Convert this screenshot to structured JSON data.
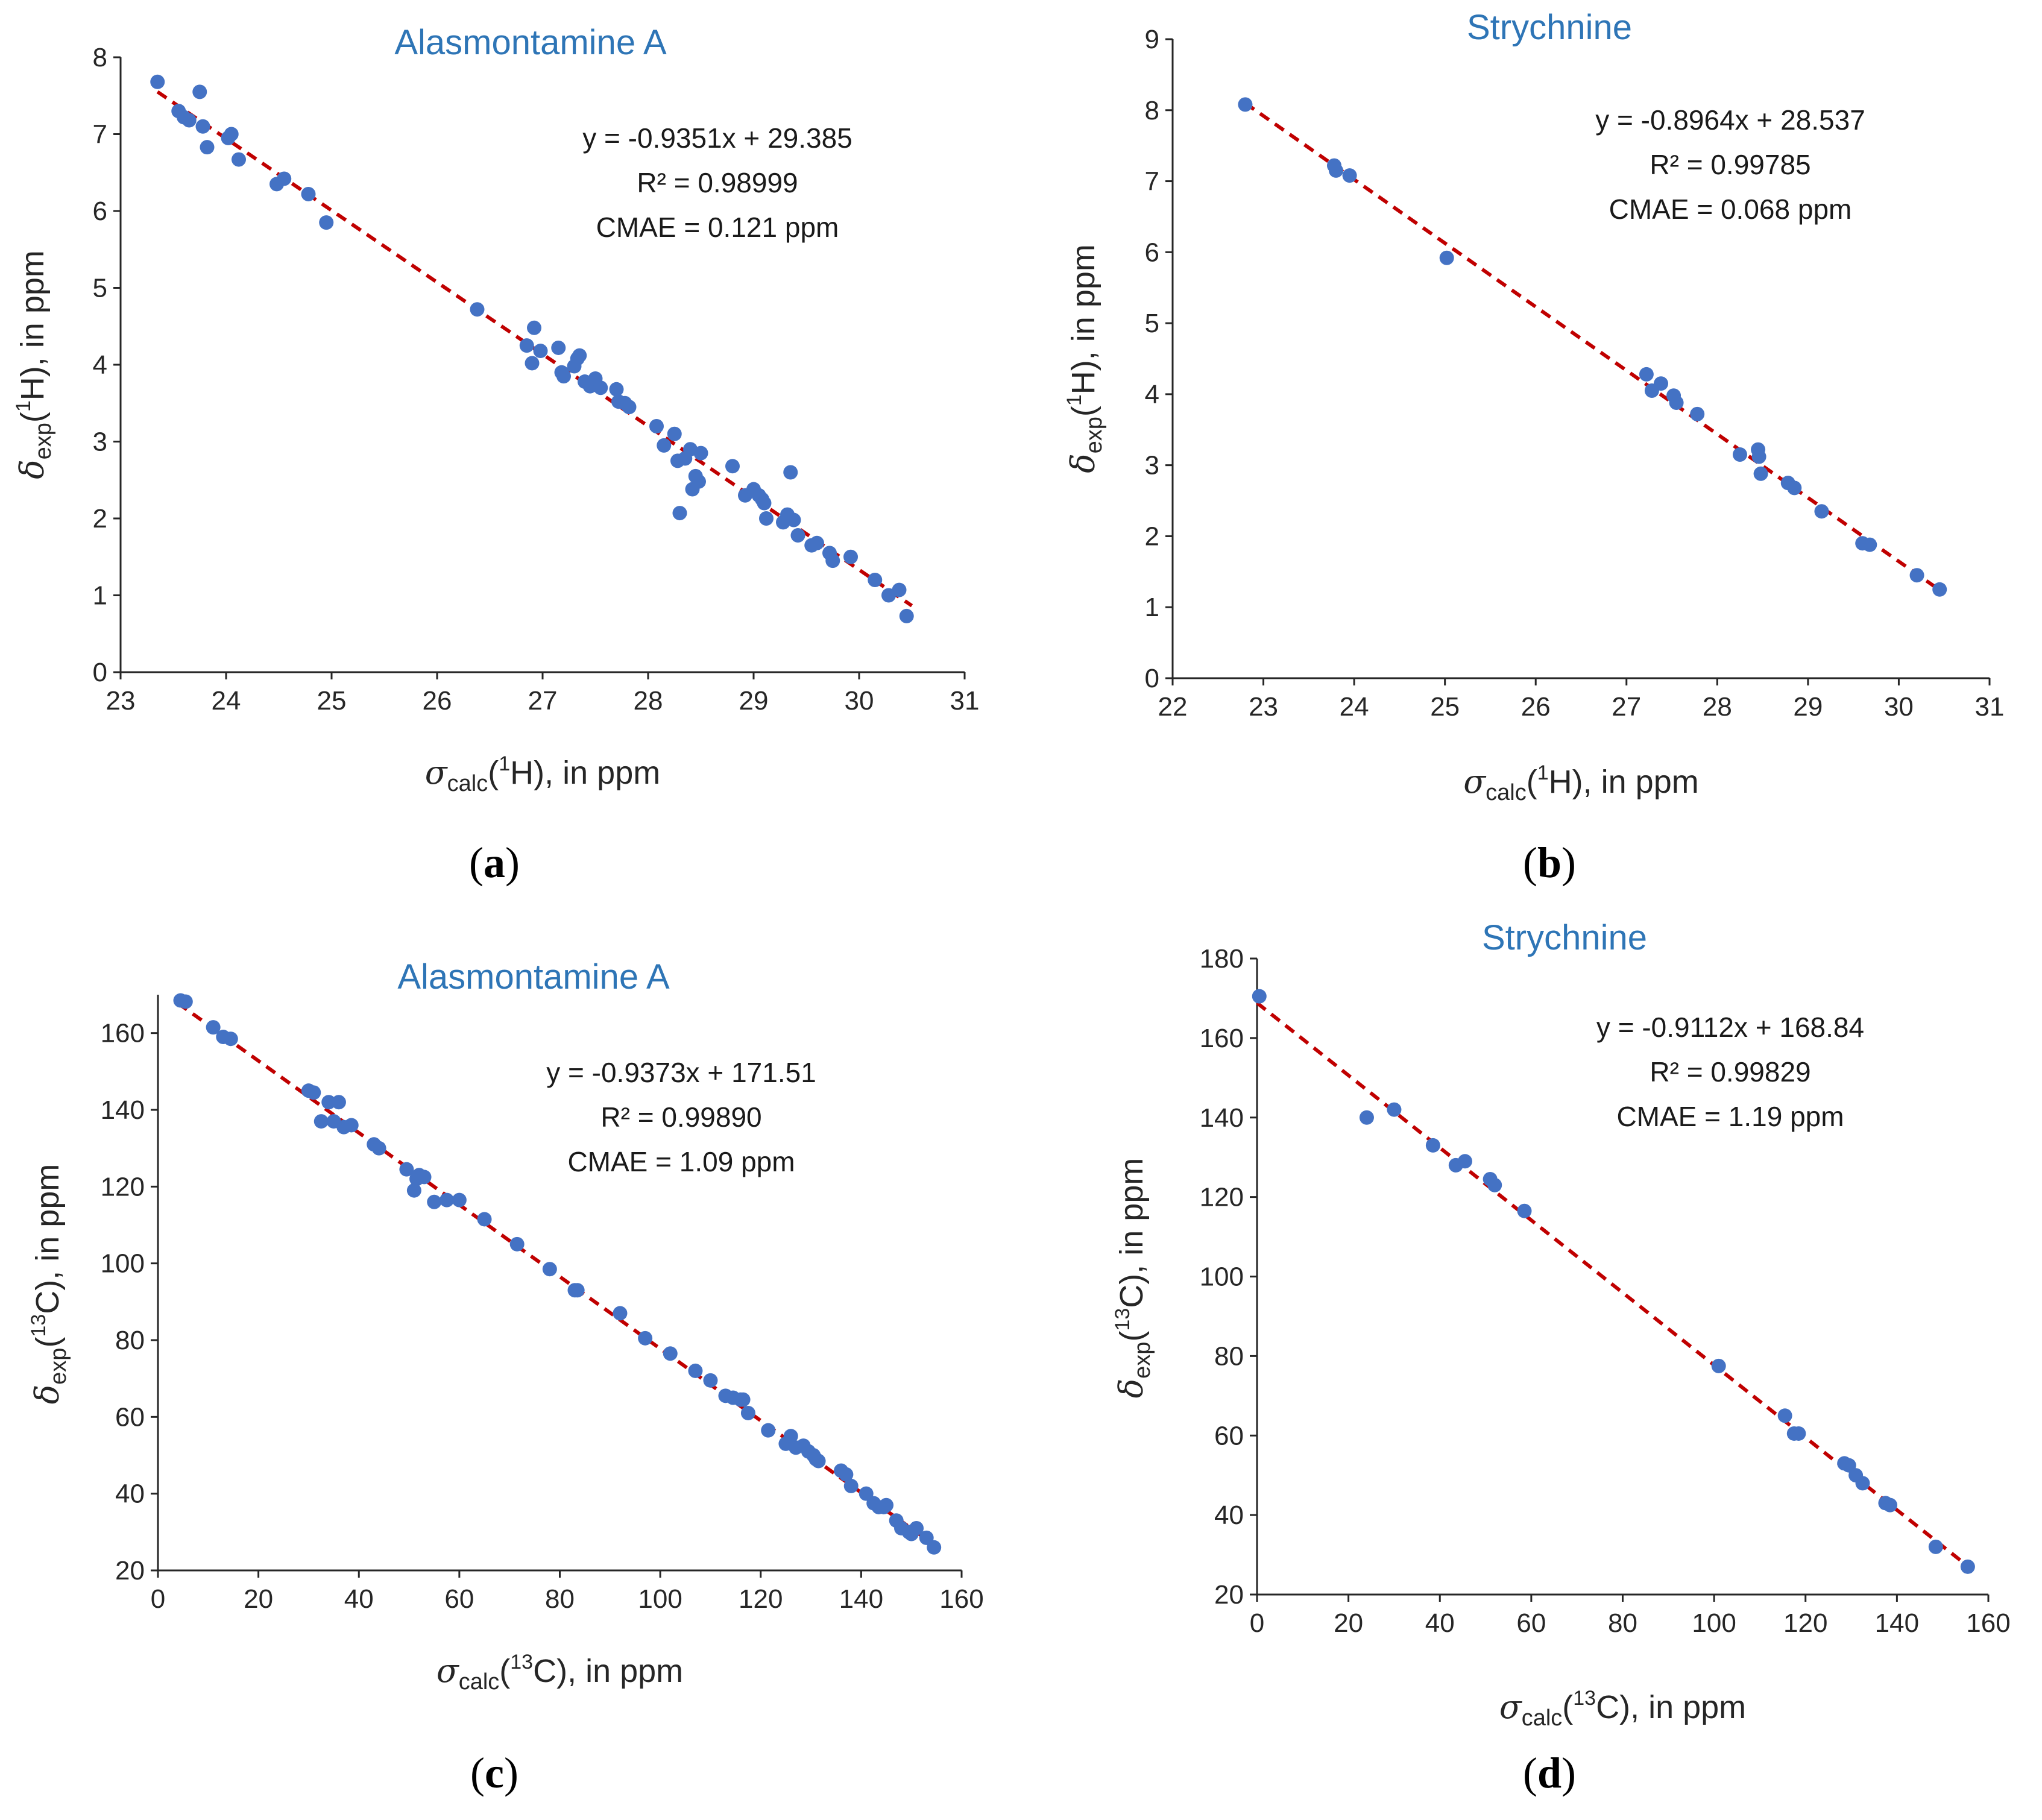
{
  "chart_data": [
    {
      "id": "a",
      "type": "scatter",
      "label": "a",
      "title": "Alasmontamine A",
      "xlabel": {
        "symbol": "σ",
        "sub": "calc",
        "open": "(",
        "sup": "1",
        "nucleus": "H",
        "tail": "), in ppm"
      },
      "ylabel": {
        "symbol": "δ",
        "sub": "exp",
        "open": "(",
        "sup": "1",
        "nucleus": "H",
        "tail": "), in ppm"
      },
      "xlim": [
        23,
        31
      ],
      "ylim": [
        0,
        8
      ],
      "xticks": [
        23,
        24,
        25,
        26,
        27,
        28,
        29,
        30,
        31
      ],
      "yticks": [
        0,
        1,
        2,
        3,
        4,
        5,
        6,
        7,
        8
      ],
      "equation": "y = -0.9351x + 29.385",
      "r2": "R² = 0.98999",
      "cmae": "CMAE = 0.121 ppm",
      "fit": {
        "slope": -0.9351,
        "intercept": 29.385,
        "x_range": [
          23.35,
          30.5
        ]
      },
      "points": [
        [
          23.35,
          7.68
        ],
        [
          23.55,
          7.3
        ],
        [
          23.6,
          7.22
        ],
        [
          23.65,
          7.18
        ],
        [
          23.75,
          7.55
        ],
        [
          23.78,
          7.1
        ],
        [
          23.82,
          6.83
        ],
        [
          24.02,
          6.95
        ],
        [
          24.05,
          7.0
        ],
        [
          24.12,
          6.67
        ],
        [
          24.48,
          6.35
        ],
        [
          24.55,
          6.42
        ],
        [
          24.78,
          6.22
        ],
        [
          24.95,
          5.85
        ],
        [
          26.38,
          4.72
        ],
        [
          26.85,
          4.25
        ],
        [
          26.9,
          4.02
        ],
        [
          26.92,
          4.48
        ],
        [
          26.98,
          4.18
        ],
        [
          27.15,
          4.22
        ],
        [
          27.18,
          3.9
        ],
        [
          27.2,
          3.85
        ],
        [
          27.3,
          3.98
        ],
        [
          27.33,
          4.08
        ],
        [
          27.35,
          4.12
        ],
        [
          27.4,
          3.78
        ],
        [
          27.45,
          3.72
        ],
        [
          27.5,
          3.82
        ],
        [
          27.55,
          3.7
        ],
        [
          27.7,
          3.68
        ],
        [
          27.72,
          3.52
        ],
        [
          27.78,
          3.5
        ],
        [
          27.82,
          3.45
        ],
        [
          28.08,
          3.2
        ],
        [
          28.15,
          2.95
        ],
        [
          28.25,
          3.1
        ],
        [
          28.28,
          2.75
        ],
        [
          28.3,
          2.07
        ],
        [
          28.35,
          2.78
        ],
        [
          28.4,
          2.9
        ],
        [
          28.42,
          2.38
        ],
        [
          28.45,
          2.55
        ],
        [
          28.48,
          2.48
        ],
        [
          28.5,
          2.85
        ],
        [
          28.8,
          2.68
        ],
        [
          28.92,
          2.3
        ],
        [
          29.0,
          2.38
        ],
        [
          29.05,
          2.3
        ],
        [
          29.08,
          2.25
        ],
        [
          29.1,
          2.2
        ],
        [
          29.12,
          2.0
        ],
        [
          29.28,
          1.95
        ],
        [
          29.32,
          2.05
        ],
        [
          29.35,
          2.6
        ],
        [
          29.38,
          1.98
        ],
        [
          29.42,
          1.78
        ],
        [
          29.55,
          1.65
        ],
        [
          29.6,
          1.68
        ],
        [
          29.72,
          1.55
        ],
        [
          29.75,
          1.45
        ],
        [
          29.92,
          1.5
        ],
        [
          30.15,
          1.2
        ],
        [
          30.28,
          1.0
        ],
        [
          30.38,
          1.07
        ],
        [
          30.45,
          0.73
        ]
      ]
    },
    {
      "id": "b",
      "type": "scatter",
      "label": "b",
      "title": "Strychnine",
      "xlabel": {
        "symbol": "σ",
        "sub": "calc",
        "open": "(",
        "sup": "1",
        "nucleus": "H",
        "tail": "), in ppm"
      },
      "ylabel": {
        "symbol": "δ",
        "sub": "exp",
        "open": "(",
        "sup": "1",
        "nucleus": "H",
        "tail": "), in ppm"
      },
      "xlim": [
        22,
        31
      ],
      "ylim": [
        0,
        9
      ],
      "xticks": [
        22,
        23,
        24,
        25,
        26,
        27,
        28,
        29,
        30,
        31
      ],
      "yticks": [
        0,
        1,
        2,
        3,
        4,
        5,
        6,
        7,
        8,
        9
      ],
      "equation": "y = -0.8964x + 28.537",
      "r2": "R² = 0.99785",
      "cmae": "CMAE = 0.068 ppm",
      "fit": {
        "slope": -0.8964,
        "intercept": 28.537,
        "x_range": [
          22.8,
          30.45
        ]
      },
      "points": [
        [
          22.8,
          8.08
        ],
        [
          23.78,
          7.22
        ],
        [
          23.8,
          7.15
        ],
        [
          23.95,
          7.08
        ],
        [
          25.02,
          5.92
        ],
        [
          27.22,
          4.28
        ],
        [
          27.28,
          4.05
        ],
        [
          27.38,
          4.15
        ],
        [
          27.52,
          3.98
        ],
        [
          27.55,
          3.88
        ],
        [
          27.78,
          3.72
        ],
        [
          28.25,
          3.15
        ],
        [
          28.45,
          3.22
        ],
        [
          28.46,
          3.12
        ],
        [
          28.48,
          2.88
        ],
        [
          28.78,
          2.75
        ],
        [
          28.85,
          2.68
        ],
        [
          29.15,
          2.35
        ],
        [
          29.6,
          1.9
        ],
        [
          29.68,
          1.88
        ],
        [
          30.2,
          1.45
        ],
        [
          30.45,
          1.25
        ]
      ]
    },
    {
      "id": "c",
      "type": "scatter",
      "label": "c",
      "title": "Alasmontamine A",
      "xlabel": {
        "symbol": "σ",
        "sub": "calc",
        "open": "(",
        "sup": "13",
        "nucleus": "C",
        "tail": "), in ppm"
      },
      "ylabel": {
        "symbol": "δ",
        "sub": "exp",
        "open": "(",
        "sup": "13",
        "nucleus": "C",
        "tail": "), in ppm"
      },
      "xlim": [
        0,
        160
      ],
      "ylim": [
        20,
        170
      ],
      "xticks": [
        0,
        20,
        40,
        60,
        80,
        100,
        120,
        140,
        160
      ],
      "yticks": [
        20,
        40,
        60,
        80,
        100,
        120,
        140,
        160
      ],
      "equation": "y = -0.9373x + 171.51",
      "r2": "R² = 0.99890",
      "cmae": "CMAE = 1.09 ppm",
      "fit": {
        "slope": -0.9373,
        "intercept": 171.51,
        "x_range": [
          4,
          155
        ]
      },
      "points": [
        [
          4.5,
          168.5
        ],
        [
          5.5,
          168.2
        ],
        [
          11,
          161.5
        ],
        [
          13,
          159
        ],
        [
          14.5,
          158.5
        ],
        [
          30,
          145
        ],
        [
          31,
          144.5
        ],
        [
          32.5,
          137
        ],
        [
          34,
          142
        ],
        [
          35,
          137
        ],
        [
          36,
          142
        ],
        [
          37,
          135.5
        ],
        [
          38.5,
          136
        ],
        [
          43,
          131
        ],
        [
          44,
          130
        ],
        [
          49.5,
          124.5
        ],
        [
          51,
          119
        ],
        [
          51.5,
          122
        ],
        [
          52,
          123
        ],
        [
          53,
          122.5
        ],
        [
          55,
          116
        ],
        [
          57.5,
          116.5
        ],
        [
          60,
          116.5
        ],
        [
          65,
          111.5
        ],
        [
          71.5,
          105
        ],
        [
          78,
          98.5
        ],
        [
          83,
          93
        ],
        [
          83.5,
          93
        ],
        [
          92,
          87
        ],
        [
          97,
          80.5
        ],
        [
          102,
          76.5
        ],
        [
          107,
          72
        ],
        [
          110,
          69.5
        ],
        [
          113,
          65.5
        ],
        [
          114.5,
          65
        ],
        [
          116,
          64.5
        ],
        [
          116.5,
          64.5
        ],
        [
          117.5,
          61
        ],
        [
          121.5,
          56.5
        ],
        [
          125,
          53
        ],
        [
          126,
          55
        ],
        [
          127,
          52
        ],
        [
          128.5,
          52.5
        ],
        [
          129.5,
          51
        ],
        [
          130.5,
          50
        ],
        [
          131,
          49
        ],
        [
          131.5,
          48.5
        ],
        [
          136,
          46
        ],
        [
          137,
          45
        ],
        [
          138,
          42
        ],
        [
          141,
          40
        ],
        [
          142.5,
          37.5
        ],
        [
          143.5,
          36.5
        ],
        [
          144.5,
          36.5
        ],
        [
          145,
          37
        ],
        [
          147,
          33
        ],
        [
          148,
          31
        ],
        [
          149.5,
          30
        ],
        [
          150,
          29.5
        ],
        [
          151,
          31
        ],
        [
          153,
          28.5
        ],
        [
          154.5,
          26
        ]
      ]
    },
    {
      "id": "d",
      "type": "scatter",
      "label": "d",
      "title": "Strychnine",
      "xlabel": {
        "symbol": "σ",
        "sub": "calc",
        "open": "(",
        "sup": "13",
        "nucleus": "C",
        "tail": "), in ppm"
      },
      "ylabel": {
        "symbol": "δ",
        "sub": "exp",
        "open": "(",
        "sup": "13",
        "nucleus": "C",
        "tail": "), in ppm"
      },
      "xlim": [
        0,
        160
      ],
      "ylim": [
        20,
        180
      ],
      "xticks": [
        0,
        20,
        40,
        60,
        80,
        100,
        120,
        140,
        160
      ],
      "yticks": [
        20,
        40,
        60,
        80,
        100,
        120,
        140,
        160,
        180
      ],
      "equation": "y = -0.9112x + 168.84",
      "r2": "R² = 0.99829",
      "cmae": "CMAE = 1.19 ppm",
      "fit": {
        "slope": -0.9112,
        "intercept": 168.84,
        "x_range": [
          0,
          155.5
        ]
      },
      "points": [
        [
          0.5,
          170.5
        ],
        [
          24,
          140
        ],
        [
          30,
          142
        ],
        [
          38.5,
          133
        ],
        [
          43.5,
          128
        ],
        [
          45.5,
          129
        ],
        [
          51,
          124.5
        ],
        [
          52,
          123
        ],
        [
          58.5,
          116.5
        ],
        [
          101,
          77.5
        ],
        [
          115.5,
          65
        ],
        [
          117.5,
          60.5
        ],
        [
          118.5,
          60.5
        ],
        [
          128.5,
          53
        ],
        [
          129.5,
          52.5
        ],
        [
          131,
          50
        ],
        [
          132.5,
          48
        ],
        [
          137.5,
          43
        ],
        [
          138.5,
          42.5
        ],
        [
          148.5,
          32
        ],
        [
          155.5,
          27
        ]
      ]
    }
  ]
}
